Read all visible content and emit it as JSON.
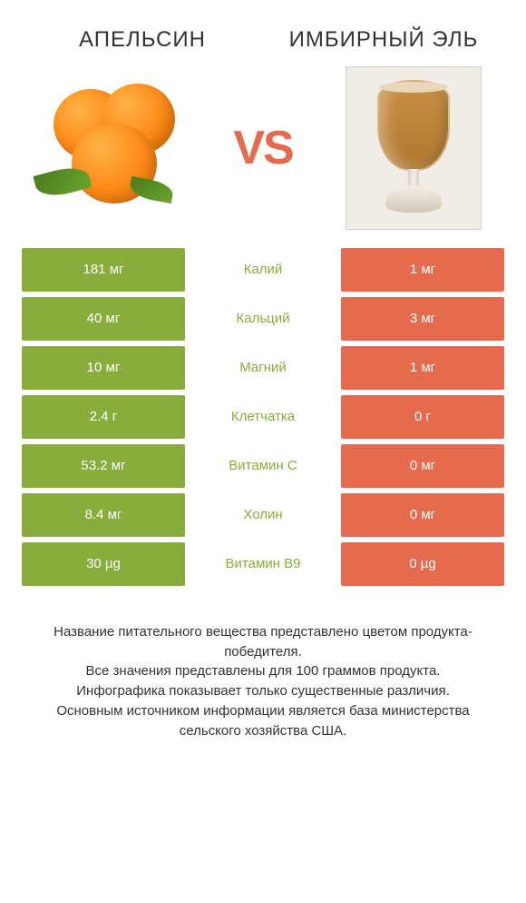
{
  "colors": {
    "left_bg": "#89ad3c",
    "right_bg": "#e56a4e",
    "mid_text_win_left": "#89ad3c",
    "mid_text_win_right": "#e56a4e",
    "vs": "#e56a4e",
    "page_bg": "#ffffff",
    "text": "#333333"
  },
  "header": {
    "left_title": "АПЕЛЬСИН",
    "right_title": "ИМБИРНЫЙ ЭЛЬ",
    "vs": "VS"
  },
  "rows": [
    {
      "left": "181 мг",
      "label": "Калий",
      "right": "1 мг",
      "winner": "left"
    },
    {
      "left": "40 мг",
      "label": "Кальций",
      "right": "3 мг",
      "winner": "left"
    },
    {
      "left": "10 мг",
      "label": "Магний",
      "right": "1 мг",
      "winner": "left"
    },
    {
      "left": "2.4 г",
      "label": "Клетчатка",
      "right": "0 г",
      "winner": "left"
    },
    {
      "left": "53.2 мг",
      "label": "Витамин C",
      "right": "0 мг",
      "winner": "left"
    },
    {
      "left": "8.4 мг",
      "label": "Холин",
      "right": "0 мг",
      "winner": "left"
    },
    {
      "left": "30 µg",
      "label": "Витамин B9",
      "right": "0 µg",
      "winner": "left"
    }
  ],
  "footer": {
    "line1": "Название питательного вещества представлено цветом продукта-победителя.",
    "line2": "Все значения представлены для 100 граммов продукта.",
    "line3": "Инфографика показывает только существенные различия.",
    "line4": "Основным источником информации является база министерства сельского хозяйства США."
  }
}
